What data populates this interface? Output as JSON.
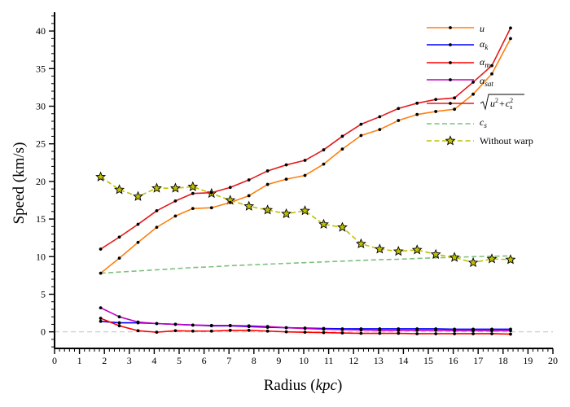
{
  "chart_data": {
    "type": "line",
    "xlabel_main": "Radius (",
    "xlabel_unit": "kpc",
    "xlabel_close": ")",
    "ylabel": "Speed (km/s)",
    "xlim": [
      0,
      20
    ],
    "ylim": [
      -2.2,
      42.5
    ],
    "xticks": [
      0,
      1,
      2,
      3,
      4,
      5,
      6,
      7,
      8,
      9,
      10,
      11,
      12,
      13,
      14,
      15,
      16,
      17,
      18,
      19,
      20
    ],
    "yticks": [
      0,
      5,
      10,
      15,
      20,
      25,
      30,
      35,
      40
    ],
    "zero_line": true,
    "legend_position": "top-right",
    "x": [
      1.85,
      2.6,
      3.35,
      4.1,
      4.85,
      5.55,
      6.3,
      7.05,
      7.8,
      8.55,
      9.3,
      10.05,
      10.8,
      11.55,
      12.3,
      13.05,
      13.8,
      14.55,
      15.3,
      16.05,
      16.8,
      17.55,
      18.3
    ],
    "series": [
      {
        "name": "u",
        "color": "#ff7f0e",
        "style": "solid",
        "marker": "dot",
        "values": [
          7.8,
          9.8,
          11.9,
          13.9,
          15.4,
          16.4,
          16.5,
          17.2,
          18.1,
          19.6,
          20.3,
          20.8,
          22.3,
          24.3,
          26.1,
          26.9,
          28.1,
          28.9,
          29.3,
          29.6,
          31.6,
          34.3,
          39.0
        ]
      },
      {
        "name": "αk",
        "color": "#0000ff",
        "style": "solid",
        "marker": "dot",
        "values": [
          1.4,
          1.2,
          1.2,
          1.1,
          1.0,
          0.9,
          0.8,
          0.8,
          0.7,
          0.6,
          0.55,
          0.5,
          0.45,
          0.4,
          0.4,
          0.4,
          0.4,
          0.4,
          0.4,
          0.35,
          0.35,
          0.35,
          0.35
        ]
      },
      {
        "name": "αm",
        "color": "#ff0000",
        "style": "solid",
        "marker": "dot",
        "values": [
          1.8,
          0.8,
          0.15,
          -0.05,
          0.15,
          0.1,
          0.1,
          0.2,
          0.2,
          0.1,
          0.0,
          -0.05,
          -0.1,
          -0.15,
          -0.2,
          -0.2,
          -0.2,
          -0.25,
          -0.25,
          -0.25,
          -0.25,
          -0.25,
          -0.3
        ]
      },
      {
        "name": "αsat",
        "color": "#bf00bf",
        "style": "solid",
        "marker": "dot",
        "values": [
          3.2,
          2.0,
          1.3,
          1.1,
          1.0,
          0.9,
          0.85,
          0.85,
          0.8,
          0.7,
          0.55,
          0.45,
          0.35,
          0.3,
          0.25,
          0.2,
          0.2,
          0.2,
          0.2,
          0.15,
          0.15,
          0.15,
          0.15
        ]
      },
      {
        "name": "√(u²+cs²)",
        "color": "#e41a1c",
        "style": "solid",
        "marker": "dot",
        "values": [
          11.0,
          12.6,
          14.3,
          16.1,
          17.4,
          18.4,
          18.5,
          19.2,
          20.2,
          21.4,
          22.2,
          22.8,
          24.2,
          26.0,
          27.6,
          28.6,
          29.7,
          30.4,
          30.9,
          31.1,
          33.2,
          35.4,
          40.4
        ]
      },
      {
        "name": "cs",
        "color": "#7fbf7f",
        "style": "dashed",
        "marker": "none",
        "values": [
          7.8,
          7.95,
          8.1,
          8.25,
          8.4,
          8.55,
          8.65,
          8.8,
          8.9,
          9.0,
          9.1,
          9.2,
          9.3,
          9.4,
          9.5,
          9.6,
          9.65,
          9.75,
          9.85,
          9.9,
          10.0,
          10.05,
          10.1
        ]
      },
      {
        "name": "Without warp",
        "color": "#bfbf00",
        "style": "dashed",
        "marker": "star",
        "values": [
          20.6,
          18.9,
          18.0,
          19.1,
          19.1,
          19.3,
          18.4,
          17.5,
          16.7,
          16.2,
          15.7,
          16.1,
          14.3,
          13.9,
          11.7,
          11.0,
          10.7,
          10.9,
          10.3,
          9.9,
          9.2,
          9.7,
          9.6
        ]
      }
    ]
  },
  "legend": {
    "u": "u",
    "ak_base": "α",
    "ak_sub": "k",
    "am_base": "α",
    "am_sub": "m",
    "asat_base": "α",
    "asat_sub": "sat",
    "sqrt_u": "u",
    "sqrt_plus": "+",
    "sqrt_c": "c",
    "sqrt_c_sub": "s",
    "sqrt_sup": "2",
    "cs_base": "c",
    "cs_sub": "s",
    "warp": "Without warp"
  }
}
